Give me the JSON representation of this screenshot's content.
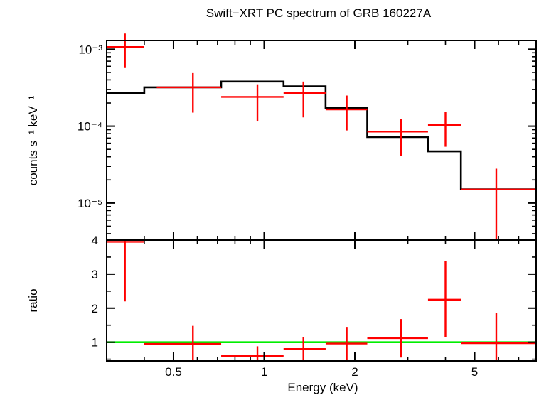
{
  "chart_data": [
    {
      "type": "line",
      "panel": "spectrum",
      "title": "Swift−XRT PC spectrum of GRB 160227A",
      "ylabel": "counts s⁻¹ keV⁻¹",
      "xscale": "log",
      "yscale": "log",
      "xlim": [
        0.3,
        8.0
      ],
      "ylim": [
        3.3e-06,
        0.0013
      ],
      "y_tick_labels": [
        "10⁻³",
        "10⁻⁴",
        "10⁻⁵"
      ],
      "y_ticks": [
        0.001,
        0.0001,
        1e-05
      ],
      "series": [
        {
          "role": "data",
          "color": "#ff0000",
          "points": [
            {
              "x": 0.345,
              "xlo": 0.3,
              "xhi": 0.4,
              "y": 0.00107,
              "ylo": 0.00057,
              "yhi": 0.0016
            },
            {
              "x": 0.58,
              "xlo": 0.44,
              "xhi": 0.72,
              "y": 0.00032,
              "ylo": 0.00015,
              "yhi": 0.00049
            },
            {
              "x": 0.95,
              "xlo": 0.72,
              "xhi": 1.16,
              "y": 0.00024,
              "ylo": 0.000115,
              "yhi": 0.00035
            },
            {
              "x": 1.35,
              "xlo": 1.16,
              "xhi": 1.6,
              "y": 0.00027,
              "ylo": 0.00013,
              "yhi": 0.00038
            },
            {
              "x": 1.88,
              "xlo": 1.6,
              "xhi": 2.2,
              "y": 0.000165,
              "ylo": 8.8e-05,
              "yhi": 0.00025
            },
            {
              "x": 2.85,
              "xlo": 2.2,
              "xhi": 3.5,
              "y": 8.5e-05,
              "ylo": 4.1e-05,
              "yhi": 0.000125
            },
            {
              "x": 4.0,
              "xlo": 3.5,
              "xhi": 4.5,
              "y": 0.000104,
              "ylo": 5.4e-05,
              "yhi": 0.000152
            },
            {
              "x": 5.9,
              "xlo": 4.5,
              "xhi": 8.0,
              "y": 1.5e-05,
              "ylo": 3.3e-06,
              "yhi": 2.8e-05
            }
          ]
        },
        {
          "role": "model",
          "color": "#000000",
          "steps": [
            {
              "xlo": 0.3,
              "xhi": 0.4,
              "y": 0.00027
            },
            {
              "xlo": 0.4,
              "xhi": 0.72,
              "y": 0.00032
            },
            {
              "xlo": 0.72,
              "xhi": 1.16,
              "y": 0.00038
            },
            {
              "xlo": 1.16,
              "xhi": 1.6,
              "y": 0.00033
            },
            {
              "xlo": 1.6,
              "xhi": 2.2,
              "y": 0.000172
            },
            {
              "xlo": 2.2,
              "xhi": 3.5,
              "y": 7.2e-05
            },
            {
              "xlo": 3.5,
              "xhi": 4.5,
              "y": 4.7e-05
            },
            {
              "xlo": 4.5,
              "xhi": 8.0,
              "y": 1.51e-05
            }
          ]
        }
      ]
    },
    {
      "type": "scatter",
      "panel": "ratio",
      "xlabel": "Energy (keV)",
      "ylabel": "ratio",
      "xscale": "log",
      "yscale": "linear",
      "xlim": [
        0.3,
        8.0
      ],
      "ylim": [
        0.45,
        4.0
      ],
      "y_ticks": [
        1,
        2,
        3,
        4
      ],
      "y_tick_labels": [
        "1",
        "2",
        "3",
        "4"
      ],
      "x_ticks": [
        0.5,
        1,
        2,
        5
      ],
      "x_tick_labels": [
        "0.5",
        "1",
        "2",
        "5"
      ],
      "reference_line": {
        "y": 1.0,
        "color": "#00ee00"
      },
      "series": [
        {
          "role": "ratio",
          "color": "#ff0000",
          "points": [
            {
              "x": 0.345,
              "xlo": 0.3,
              "xhi": 0.4,
              "y": 3.95,
              "ylo": 2.2,
              "yhi": 4.0
            },
            {
              "x": 0.58,
              "xlo": 0.4,
              "xhi": 0.72,
              "y": 0.95,
              "ylo": 0.45,
              "yhi": 1.48
            },
            {
              "x": 0.95,
              "xlo": 0.72,
              "xhi": 1.16,
              "y": 0.6,
              "ylo": 0.45,
              "yhi": 0.88
            },
            {
              "x": 1.35,
              "xlo": 1.16,
              "xhi": 1.6,
              "y": 0.8,
              "ylo": 0.45,
              "yhi": 1.15
            },
            {
              "x": 1.88,
              "xlo": 1.6,
              "xhi": 2.2,
              "y": 0.96,
              "ylo": 0.45,
              "yhi": 1.45
            },
            {
              "x": 2.85,
              "xlo": 2.2,
              "xhi": 3.5,
              "y": 1.12,
              "ylo": 0.55,
              "yhi": 1.68
            },
            {
              "x": 4.0,
              "xlo": 3.5,
              "xhi": 4.5,
              "y": 2.25,
              "ylo": 1.15,
              "yhi": 3.38
            },
            {
              "x": 5.9,
              "xlo": 4.5,
              "xhi": 8.0,
              "y": 0.97,
              "ylo": 0.45,
              "yhi": 1.85
            }
          ]
        }
      ]
    }
  ]
}
